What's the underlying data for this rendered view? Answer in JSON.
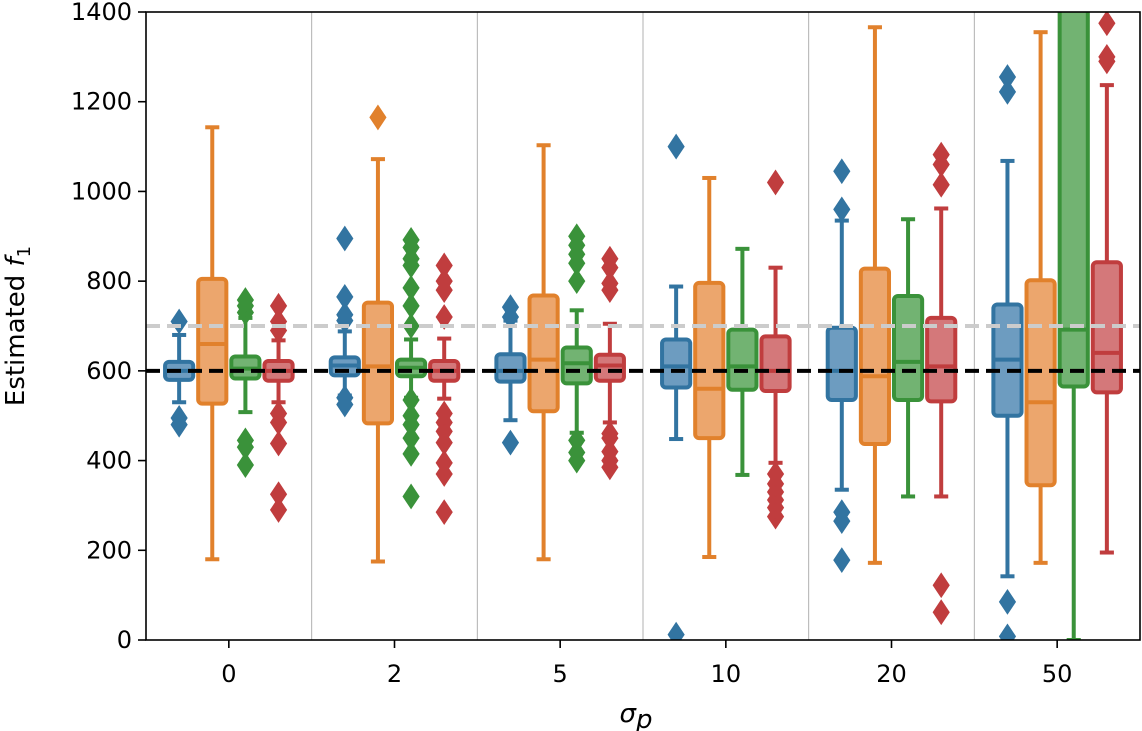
{
  "chart_data": {
    "type": "box",
    "ylabel_prefix": "Estimated ",
    "ylabel_symbol": "f",
    "ylabel_subscript": "1",
    "xlabel_symbol": "σ",
    "xlabel_subscript": "p",
    "categories": [
      "0",
      "2",
      "5",
      "10",
      "20",
      "50"
    ],
    "ylim": [
      0,
      1400
    ],
    "yticks": [
      "0",
      "200",
      "400",
      "600",
      "800",
      "1000",
      "1200",
      "1400"
    ],
    "ytick_values": [
      0,
      200,
      400,
      600,
      800,
      1000,
      1200,
      1400
    ],
    "reference_lines": [
      {
        "value": 600,
        "color": "#000000",
        "style": "dashed"
      },
      {
        "value": 700,
        "color": "#cccccc",
        "style": "dashed"
      }
    ],
    "series_colors": [
      "#3274a1",
      "#e1812c",
      "#3a923a",
      "#c03d3e"
    ],
    "series_fill_colors": [
      "#6d9cc0",
      "#eca66d",
      "#72b372",
      "#d4787a"
    ],
    "boxes": [
      [
        {
          "whislo": 530,
          "q1": 580,
          "med": 600,
          "q3": 620,
          "whishi": 680,
          "fliers": [
            480,
            495,
            710
          ]
        },
        {
          "whislo": 180,
          "q1": 527,
          "med": 660,
          "q3": 805,
          "whishi": 1143,
          "fliers": []
        },
        {
          "whislo": 508,
          "q1": 583,
          "med": 605,
          "q3": 632,
          "whishi": 718,
          "fliers": [
            390,
            430,
            445,
            730,
            745,
            758
          ]
        },
        {
          "whislo": 530,
          "q1": 578,
          "med": 600,
          "q3": 622,
          "whishi": 668,
          "fliers": [
            290,
            325,
            438,
            485,
            505,
            690,
            710,
            745
          ]
        }
      ],
      [
        {
          "whislo": 545,
          "q1": 590,
          "med": 612,
          "q3": 630,
          "whishi": 688,
          "fliers": [
            525,
            540,
            712,
            725,
            765,
            895
          ]
        },
        {
          "whislo": 175,
          "q1": 483,
          "med": 610,
          "q3": 752,
          "whishi": 1072,
          "fliers": [
            1165
          ]
        },
        {
          "whislo": 540,
          "q1": 588,
          "med": 607,
          "q3": 625,
          "whishi": 670,
          "fliers": [
            320,
            415,
            450,
            480,
            500,
            535,
            700,
            745,
            785,
            835,
            850,
            875,
            892
          ]
        },
        {
          "whislo": 538,
          "q1": 578,
          "med": 600,
          "q3": 622,
          "whishi": 672,
          "fliers": [
            285,
            370,
            395,
            440,
            465,
            485,
            505,
            720,
            780,
            800,
            835
          ]
        }
      ],
      [
        {
          "whislo": 490,
          "q1": 576,
          "med": 600,
          "q3": 637,
          "whishi": 712,
          "fliers": [
            440,
            720,
            742
          ]
        },
        {
          "whislo": 180,
          "q1": 510,
          "med": 625,
          "q3": 768,
          "whishi": 1103,
          "fliers": []
        },
        {
          "whislo": 462,
          "q1": 572,
          "med": 617,
          "q3": 652,
          "whishi": 735,
          "fliers": [
            400,
            418,
            445,
            800,
            840,
            860,
            880,
            900
          ]
        },
        {
          "whislo": 485,
          "q1": 578,
          "med": 612,
          "q3": 636,
          "whishi": 705,
          "fliers": [
            385,
            400,
            420,
            450,
            460,
            780,
            795,
            830,
            850
          ]
        }
      ],
      [
        {
          "whislo": 448,
          "q1": 563,
          "med": 610,
          "q3": 670,
          "whishi": 788,
          "fliers": [
            12,
            1100
          ]
        },
        {
          "whislo": 185,
          "q1": 450,
          "med": 560,
          "q3": 796,
          "whishi": 1030,
          "fliers": []
        },
        {
          "whislo": 368,
          "q1": 558,
          "med": 610,
          "q3": 692,
          "whishi": 872,
          "fliers": []
        },
        {
          "whislo": 395,
          "q1": 555,
          "med": 600,
          "q3": 677,
          "whishi": 830,
          "fliers": [
            275,
            295,
            312,
            330,
            348,
            370,
            1020
          ]
        }
      ],
      [
        {
          "whislo": 335,
          "q1": 535,
          "med": 600,
          "q3": 696,
          "whishi": 935,
          "fliers": [
            178,
            265,
            285,
            960,
            1045
          ]
        },
        {
          "whislo": 172,
          "q1": 437,
          "med": 588,
          "q3": 828,
          "whishi": 1366,
          "fliers": []
        },
        {
          "whislo": 320,
          "q1": 535,
          "med": 620,
          "q3": 767,
          "whishi": 938,
          "fliers": []
        },
        {
          "whislo": 320,
          "q1": 532,
          "med": 610,
          "q3": 718,
          "whishi": 962,
          "fliers": [
            62,
            122,
            1015,
            1060,
            1082
          ]
        }
      ],
      [
        {
          "whislo": 142,
          "q1": 500,
          "med": 625,
          "q3": 748,
          "whishi": 1068,
          "fliers": [
            8,
            85,
            1222,
            1255
          ]
        },
        {
          "whislo": 172,
          "q1": 345,
          "med": 530,
          "q3": 802,
          "whishi": 1355,
          "fliers": []
        },
        {
          "whislo": 0,
          "q1": 565,
          "med": 692,
          "q3": 1420,
          "whishi": 1420,
          "fliers": []
        },
        {
          "whislo": 195,
          "q1": 552,
          "med": 640,
          "q3": 842,
          "whishi": 1237,
          "fliers": [
            1290,
            1300,
            1375
          ]
        }
      ]
    ]
  }
}
